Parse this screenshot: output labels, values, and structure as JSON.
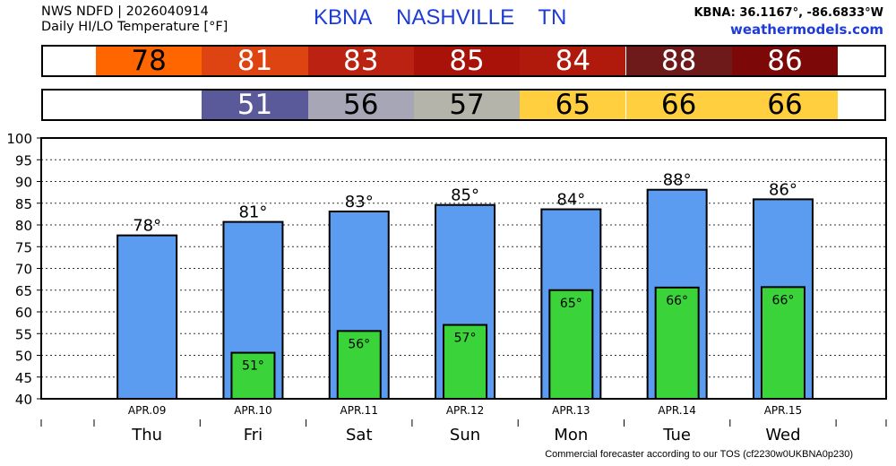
{
  "header": {
    "product_line": "NWS NDFD | 2026040914",
    "subtitle": "Daily HI/LO Temperature [°F]",
    "station_id": "KBNA",
    "station_name": "NASHVILLE",
    "state": "TN",
    "coords": "KBNA: 36.1167°, -86.6833°W",
    "website": "weathermodels.com"
  },
  "hi_strip": [
    {
      "value": "78",
      "color": "#ff6600",
      "text_color": "#000000"
    },
    {
      "value": "81",
      "color": "#dd4411",
      "text_color": "#ffffff"
    },
    {
      "value": "83",
      "color": "#bb2211",
      "text_color": "#ffffff"
    },
    {
      "value": "85",
      "color": "#a81209",
      "text_color": "#ffffff"
    },
    {
      "value": "84",
      "color": "#b01a0c",
      "text_color": "#ffffff"
    },
    {
      "value": "88",
      "color": "#6e1a1a",
      "text_color": "#ffffff"
    },
    {
      "value": "86",
      "color": "#7d0808",
      "text_color": "#ffffff"
    }
  ],
  "lo_strip": [
    {
      "value": "",
      "color": "#ffffff",
      "text_color": "#000000"
    },
    {
      "value": "51",
      "color": "#5a5a9a",
      "text_color": "#ffffff"
    },
    {
      "value": "56",
      "color": "#a6a6b6",
      "text_color": "#000000"
    },
    {
      "value": "57",
      "color": "#b4b4ab",
      "text_color": "#000000"
    },
    {
      "value": "65",
      "color": "#ffcf3f",
      "text_color": "#000000"
    },
    {
      "value": "66",
      "color": "#ffcf3f",
      "text_color": "#000000"
    },
    {
      "value": "66",
      "color": "#ffcf3f",
      "text_color": "#000000"
    }
  ],
  "chart_data": {
    "type": "bar",
    "title": "",
    "xlabel": "",
    "ylabel": "",
    "ylim": [
      40,
      100
    ],
    "yticks": [
      40,
      45,
      50,
      55,
      60,
      65,
      70,
      75,
      80,
      85,
      90,
      95,
      100
    ],
    "grid": true,
    "categories": [
      "APR.09",
      "APR.10",
      "APR.11",
      "APR.12",
      "APR.13",
      "APR.14",
      "APR.15"
    ],
    "days": [
      "Thu",
      "Fri",
      "Sat",
      "Sun",
      "Mon",
      "Tue",
      "Wed"
    ],
    "series": [
      {
        "values": [
          77.6,
          80.7,
          83.1,
          84.6,
          83.6,
          88.1,
          85.9
        ],
        "labels": [
          "78°",
          "81°",
          "83°",
          "85°",
          "84°",
          "88°",
          "86°"
        ],
        "color": "#5b9cf0"
      },
      {
        "values": [
          null,
          50.6,
          55.6,
          57.0,
          65.0,
          65.6,
          65.7
        ],
        "labels": [
          "",
          "51°",
          "56°",
          "57°",
          "65°",
          "66°",
          "66°"
        ],
        "color": "#3ad43a"
      }
    ]
  },
  "footer": "Commercial forecaster according to our TOS (cf2230w0UKBNA0p230)"
}
